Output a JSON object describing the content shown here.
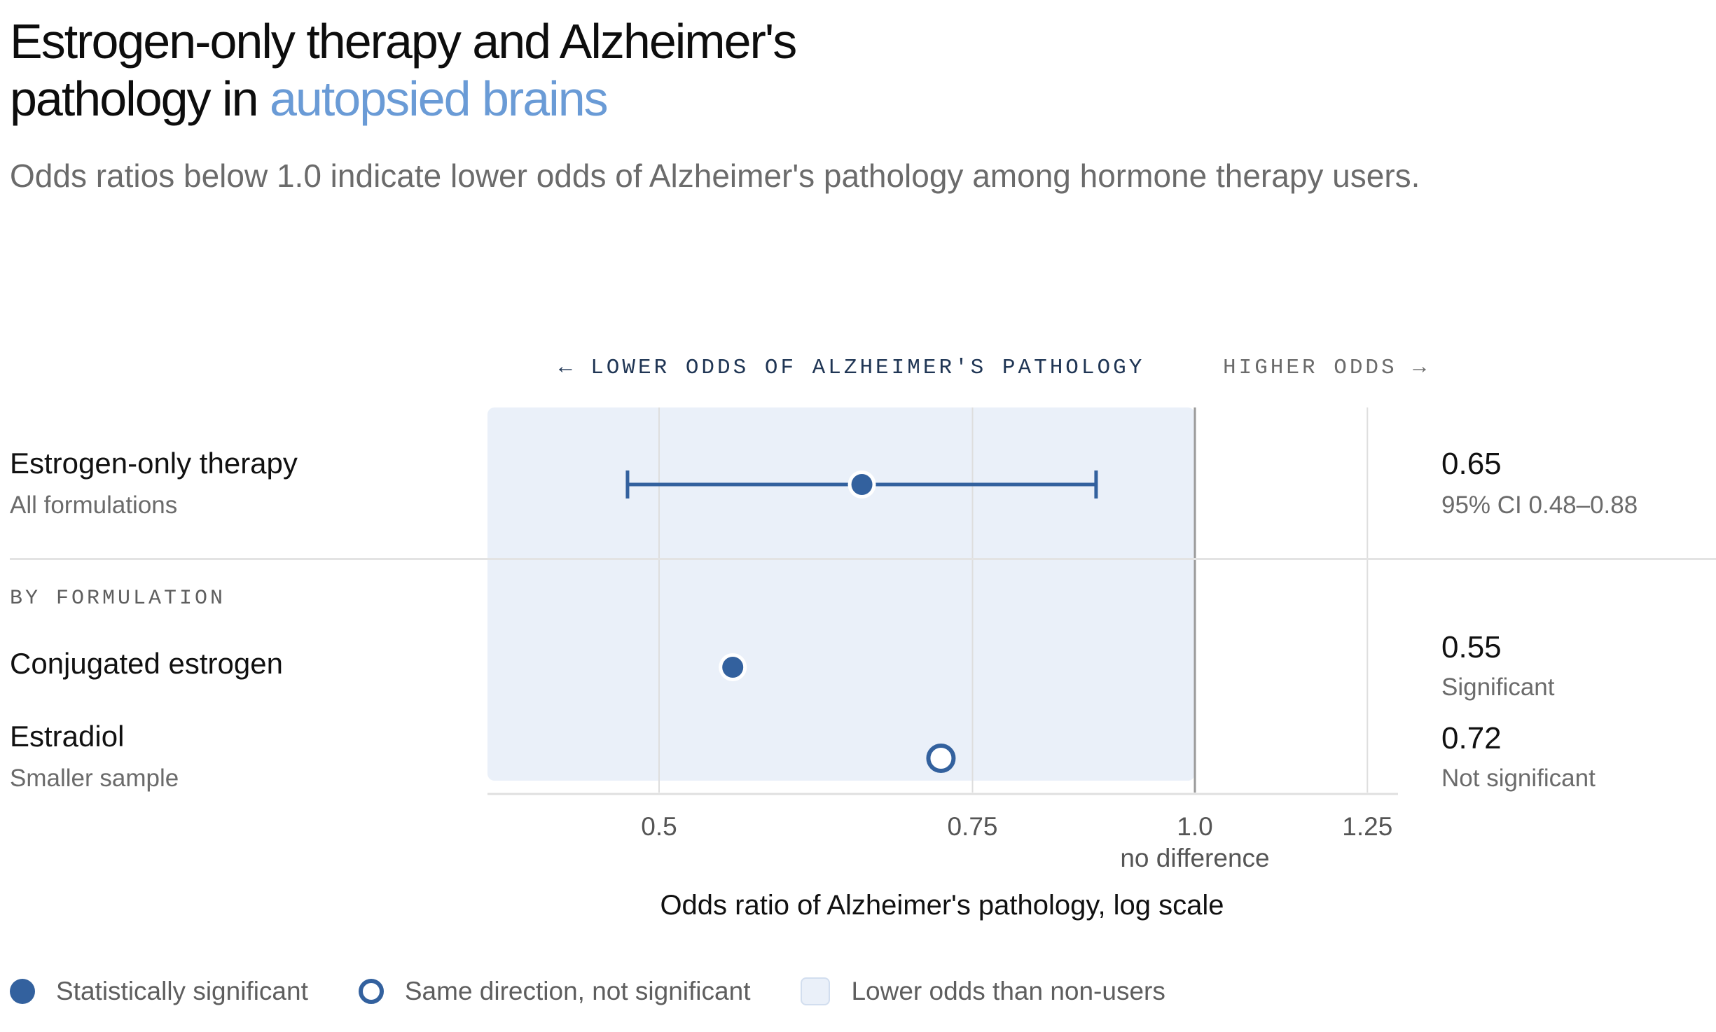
{
  "title": {
    "part1": "Estrogen-only therapy and Alzheimer's",
    "part2": "pathology in ",
    "highlight": "autopsied brains"
  },
  "subtitle": "Odds ratios below 1.0 indicate lower odds of Alzheimer's pathology among hormone therapy users.",
  "direction_labels": {
    "lower": "← LOWER ODDS OF ALZHEIMER'S PATHOLOGY",
    "higher": "HIGHER ODDS →"
  },
  "section_label": "BY FORMULATION",
  "rows": [
    {
      "label": "Estrogen-only therapy",
      "sublabel": "All formulations",
      "value_text": "0.65",
      "note": "95% CI 0.48–0.88"
    },
    {
      "label": "Conjugated estrogen",
      "sublabel": "",
      "value_text": "0.55",
      "note": "Significant"
    },
    {
      "label": "Estradiol",
      "sublabel": "Smaller sample",
      "value_text": "0.72",
      "note": "Not significant"
    }
  ],
  "legend": {
    "significant": "Statistically significant",
    "not_significant": "Same direction, not significant",
    "region": "Lower odds than non-users"
  },
  "colors": {
    "accent": "#6a9bd6",
    "marker": "#33619e",
    "region": "#eaf0f9",
    "reference_line": "#9a9a9a",
    "grid": "#dedede"
  },
  "chart_data": {
    "type": "scatter",
    "scale": "log",
    "xlim": [
      0.4,
      1.25
    ],
    "xticks": [
      {
        "value": 0.5,
        "label": "0.5"
      },
      {
        "value": 0.75,
        "label": "0.75"
      },
      {
        "value": 1.0,
        "label": "1.0"
      },
      {
        "value": 1.25,
        "label": "1.25"
      }
    ],
    "reference": {
      "value": 1.0,
      "label": "no difference"
    },
    "shaded_region": [
      0.4,
      1.0
    ],
    "xlabel": "Odds ratio of Alzheimer's pathology, log scale",
    "points": [
      {
        "name": "Estrogen-only therapy",
        "value": 0.65,
        "ci": [
          0.48,
          0.88
        ],
        "significant": true
      },
      {
        "name": "Conjugated estrogen",
        "value": 0.55,
        "significant": true
      },
      {
        "name": "Estradiol",
        "value": 0.72,
        "significant": false
      }
    ]
  }
}
